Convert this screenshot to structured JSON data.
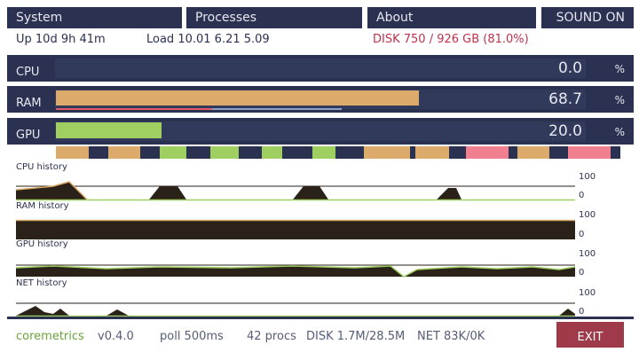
{
  "tabs": [
    "System",
    "Processes",
    "About",
    "SOUND ON"
  ],
  "status": {
    "uptime": "Up 10d 9h 41m",
    "load": "Load 10.01 6.21 5.09",
    "disk": "DISK 750 / 926 GB (81.0%)"
  },
  "meters": [
    {
      "label": "CPU",
      "value": "0.0",
      "unit": "%"
    },
    {
      "label": "RAM",
      "value": "68.7",
      "unit": "%"
    },
    {
      "label": "GPU",
      "value": "20.0",
      "unit": "%"
    }
  ],
  "history": [
    {
      "label": "CPU history",
      "max": "100",
      "min": "0"
    },
    {
      "label": "RAM history",
      "max": "100",
      "min": "0"
    },
    {
      "label": "GPU history",
      "max": "100",
      "min": "0"
    },
    {
      "label": "NET history",
      "max": "100",
      "min": "0"
    }
  ],
  "footer": {
    "app": "coremetrics",
    "version": "v0.4.0",
    "poll": "poll 500ms",
    "procs": "42 procs",
    "disk": "DISK 1.7M/28.5M",
    "net": "NET 83K/0K",
    "exit": "EXIT"
  }
}
